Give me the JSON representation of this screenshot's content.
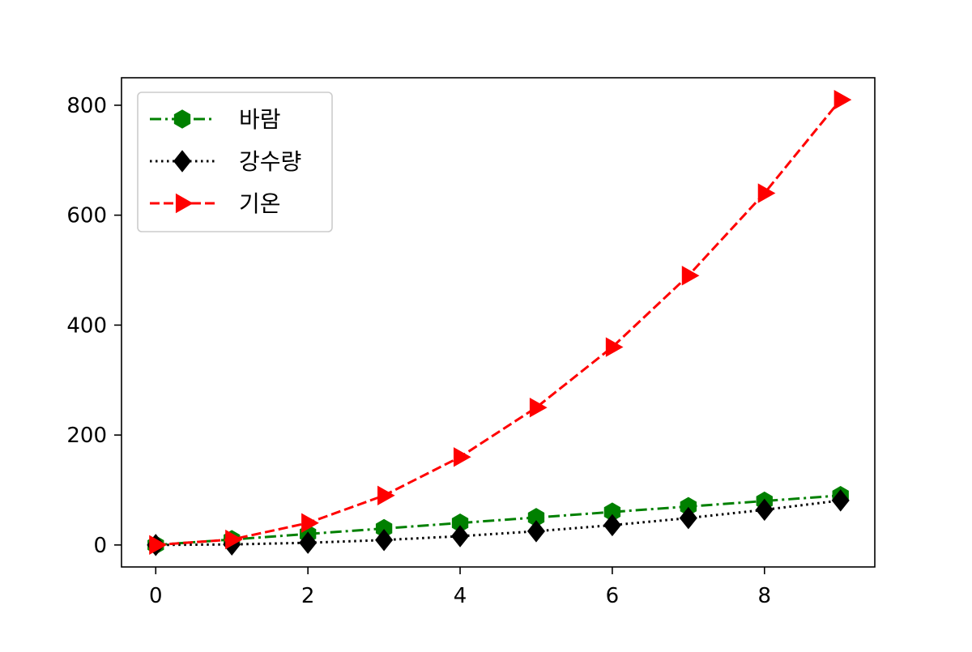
{
  "chart_data": {
    "type": "line",
    "title": "",
    "xlabel": "",
    "ylabel": "",
    "x": [
      0,
      1,
      2,
      3,
      4,
      5,
      6,
      7,
      8,
      9
    ],
    "xlim": [
      -0.45,
      9.45
    ],
    "ylim": [
      -40,
      850
    ],
    "xticks": [
      0,
      2,
      4,
      6,
      8
    ],
    "yticks": [
      0,
      200,
      400,
      600,
      800
    ],
    "grid": false,
    "legend_position": "top-left",
    "series": [
      {
        "name": "바람",
        "values": [
          0,
          10,
          20,
          30,
          40,
          50,
          60,
          70,
          80,
          90
        ],
        "color": "#008000",
        "linestyle": "dashdot",
        "marker": "hexagon"
      },
      {
        "name": "강수량",
        "values": [
          0,
          1,
          4,
          9,
          16,
          25,
          36,
          49,
          64,
          81
        ],
        "color": "#000000",
        "linestyle": "dotted",
        "marker": "diamond"
      },
      {
        "name": "기온",
        "values": [
          0,
          10,
          40,
          90,
          160,
          250,
          360,
          490,
          640,
          810
        ],
        "color": "#ff0000",
        "linestyle": "dashed",
        "marker": "triangle-right"
      }
    ]
  }
}
